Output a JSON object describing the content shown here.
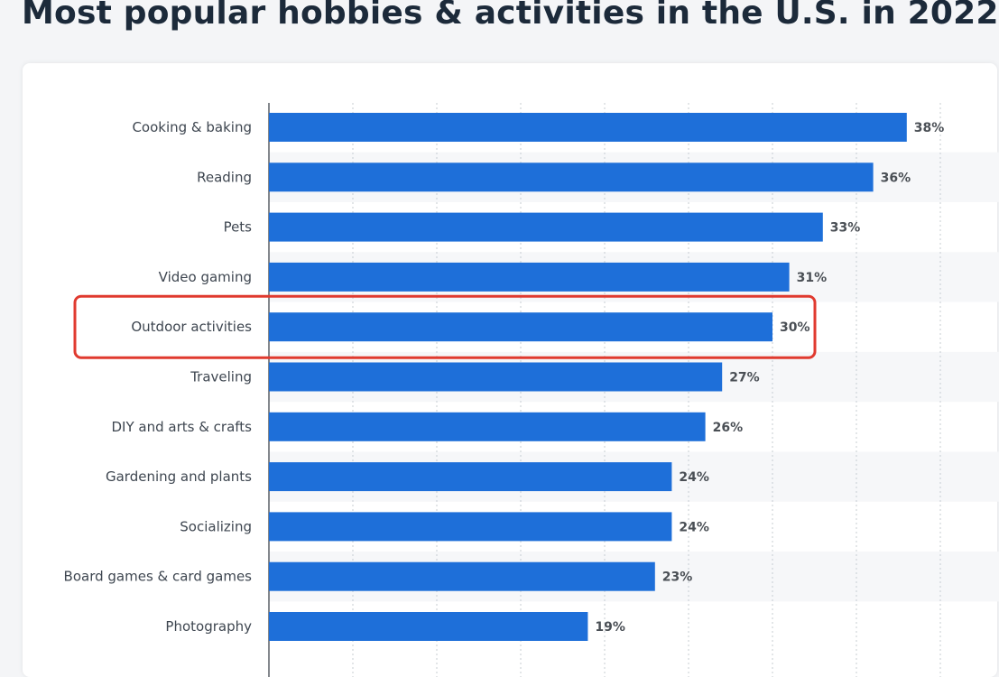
{
  "title": "Most popular hobbies & activities in the U.S. in 2022",
  "chart_data": {
    "type": "bar",
    "orientation": "horizontal",
    "title": "Most popular hobbies & activities in the U.S. in 2022",
    "categories": [
      "Cooking & baking",
      "Reading",
      "Pets",
      "Video gaming",
      "Outdoor activities",
      "Traveling",
      "DIY and arts & crafts",
      "Gardening and plants",
      "Socializing",
      "Board games & card games",
      "Photography"
    ],
    "values": [
      38,
      36,
      33,
      31,
      30,
      27,
      26,
      24,
      24,
      23,
      19
    ],
    "value_labels": [
      "38%",
      "36%",
      "33%",
      "31%",
      "30%",
      "27%",
      "26%",
      "24%",
      "24%",
      "23%",
      "19%"
    ],
    "xlim": [
      0,
      45
    ],
    "grid": true,
    "bar_color": "#1e6fd9",
    "highlight_color": "#e03a2f",
    "highlighted_category": "Outdoor activities"
  }
}
